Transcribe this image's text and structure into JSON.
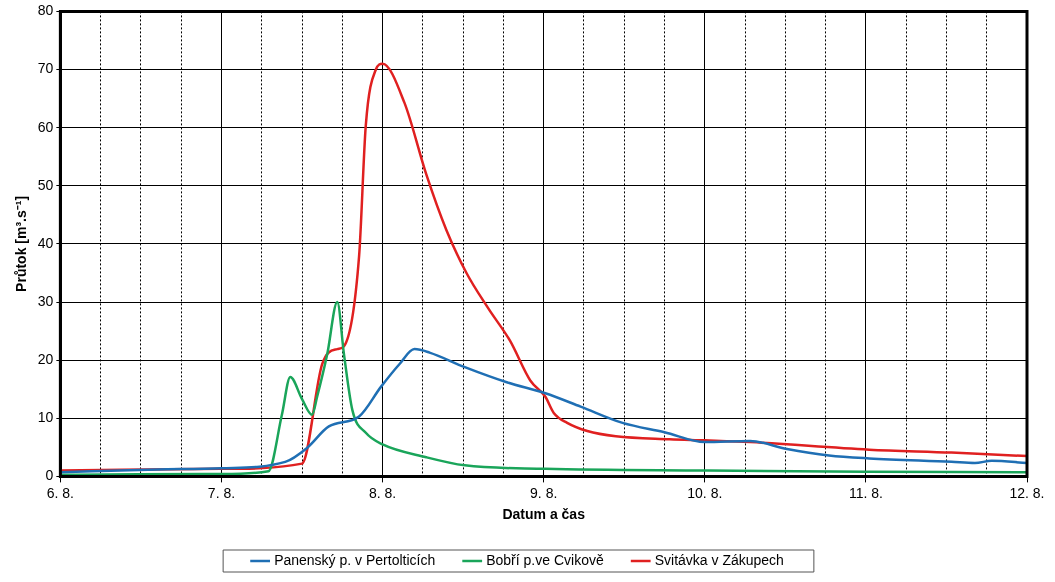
{
  "chart_data": {
    "type": "line",
    "xlabel": "Datum a čas",
    "ylabel": "Průtok [m³.s⁻¹]",
    "xlim": [
      "--08-06",
      "--08-12"
    ],
    "ylim": [
      0,
      80
    ],
    "yticks": [
      0,
      10,
      20,
      30,
      40,
      50,
      60,
      70,
      80
    ],
    "xticks": [
      {
        "value": "--08-06",
        "label": "6. 8."
      },
      {
        "value": "--08-06T06:00",
        "label": null
      },
      {
        "value": "--08-06T12:00",
        "label": null
      },
      {
        "value": "--08-06T18:00",
        "label": null
      },
      {
        "value": "--08-07",
        "label": "7. 8."
      },
      {
        "value": "--08-07T06:00",
        "label": null
      },
      {
        "value": "--08-07T12:00",
        "label": null
      },
      {
        "value": "--08-07T18:00",
        "label": null
      },
      {
        "value": "--08-08",
        "label": "8. 8."
      },
      {
        "value": "--08-08T06:00",
        "label": null
      },
      {
        "value": "--08-08T12:00",
        "label": null
      },
      {
        "value": "--08-08T18:00",
        "label": null
      },
      {
        "value": "--08-09",
        "label": "9. 8."
      },
      {
        "value": "--08-09T06:00",
        "label": null
      },
      {
        "value": "--08-09T12:00",
        "label": null
      },
      {
        "value": "--08-09T18:00",
        "label": null
      },
      {
        "value": "--08-10",
        "label": "10. 8."
      },
      {
        "value": "--08-10T06:00",
        "label": null
      },
      {
        "value": "--08-10T12:00",
        "label": null
      },
      {
        "value": "--08-10T18:00",
        "label": null
      },
      {
        "value": "--08-11",
        "label": "11. 8."
      },
      {
        "value": "--08-11T06:00",
        "label": null
      },
      {
        "value": "--08-11T12:00",
        "label": null
      },
      {
        "value": "--08-11T18:00",
        "label": null
      },
      {
        "value": "--08-12",
        "label": "12. 8."
      }
    ],
    "grid": true,
    "legend": "bottom",
    "marker": "none",
    "line_style": "solid",
    "series": [
      {
        "name": "Panenský p. v Pertolticích",
        "color": "#1f6fb4",
        "x": [
          "--08-06T00:00",
          "--08-06T14:30",
          "--08-07T00:00",
          "--08-07T09:30",
          "--08-07T12:45",
          "--08-07T16:00",
          "--08-07T20:30",
          "--08-07T23:45",
          "--08-08T02:30",
          "--08-08T04:45",
          "--08-08T07:00",
          "--08-08T12:15",
          "--08-08T18:30",
          "--08-09T00:15",
          "--08-09T05:30",
          "--08-09T11:45",
          "--08-09T18:00",
          "--08-10T00:00",
          "--08-10T06:45",
          "--08-10T12:15",
          "--08-10T18:30",
          "--08-11T00:30",
          "--08-11T12:45",
          "--08-11T16:15",
          "--08-11T18:45",
          "--08-12T00:00"
        ],
        "values": [
          0.7,
          1.2,
          1.4,
          2.5,
          4.9,
          8.6,
          10.3,
          15.4,
          19.3,
          21.9,
          21.3,
          18.8,
          16.2,
          14.3,
          12,
          9.2,
          7.6,
          5.9,
          6.1,
          4.7,
          3.6,
          3.1,
          2.5,
          2.3,
          2.7,
          2.3
        ]
      },
      {
        "name": "Bobří p.ve Cvikově",
        "color": "#1aa55a",
        "x": [
          "--08-06T00:00",
          "--08-07T00:00",
          "--08-07T07:00",
          "--08-07T09:00",
          "--08-07T10:15",
          "--08-07T12:00",
          "--08-07T13:30",
          "--08-07T14:15",
          "--08-07T15:45",
          "--08-07T17:15",
          "--08-07T18:15",
          "--08-07T19:30",
          "--08-07T21:30",
          "--08-08T00:00",
          "--08-08T06:30",
          "--08-08T12:15",
          "--08-09T00:15",
          "--08-10T00:00",
          "--08-11T00:00",
          "--08-12T00:00"
        ],
        "values": [
          0.3,
          0.4,
          0.9,
          10.6,
          17.1,
          13.3,
          10.6,
          13.7,
          21,
          30,
          21,
          11.4,
          7.5,
          5.5,
          3.3,
          1.9,
          1.3,
          1,
          0.8,
          0.7
        ]
      },
      {
        "name": "Svitávka v Zákupech",
        "color": "#e02020",
        "x": [
          "--08-06T00:00",
          "--08-07T00:00",
          "--08-07T12:00",
          "--08-07T15:00",
          "--08-07T17:15",
          "--08-07T18:15",
          "--08-07T20:30",
          "--08-07T21:30",
          "--08-07T23:00",
          "--08-08T00:00",
          "--08-08T03:15",
          "--08-08T06:30",
          "--08-08T09:30",
          "--08-08T12:30",
          "--08-08T15:45",
          "--08-08T19:00",
          "--08-08T22:00",
          "--08-09T00:15",
          "--08-09T01:30",
          "--08-09T03:30",
          "--08-09T06:30",
          "--08-09T10:45",
          "--08-09T18:45",
          "--08-10T00:00",
          "--08-10T06:45",
          "--08-11T00:30",
          "--08-11T12:45",
          "--08-12T00:00"
        ],
        "values": [
          1,
          1.3,
          2.2,
          19.3,
          21.9,
          22.4,
          37.9,
          60.4,
          70,
          71,
          64.3,
          52,
          42.4,
          35,
          28.9,
          23.3,
          16.5,
          13.7,
          10.9,
          9.2,
          7.8,
          6.9,
          6.4,
          6.2,
          5.9,
          4.6,
          4.1,
          3.5
        ]
      }
    ]
  }
}
